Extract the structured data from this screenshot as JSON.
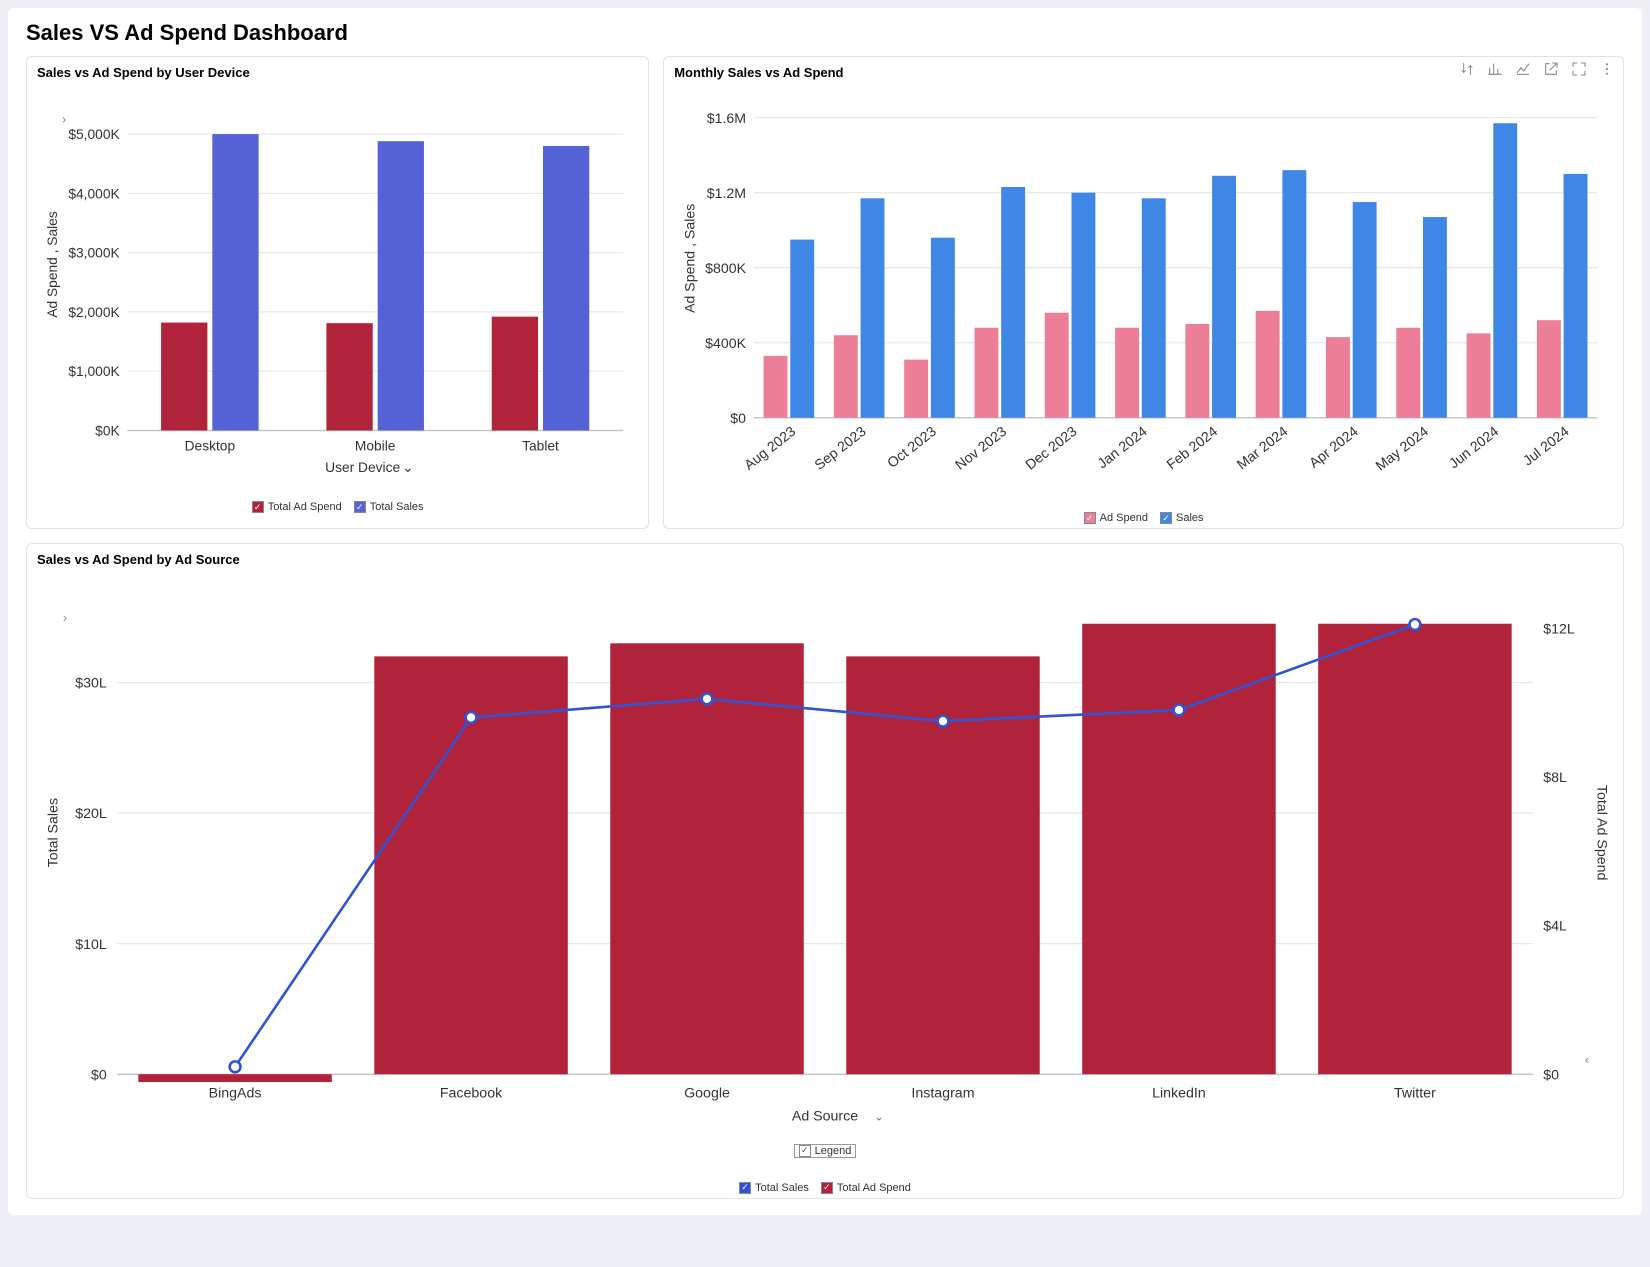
{
  "dashboard_title": "Sales VS Ad Spend Dashboard",
  "colors": {
    "panel_border": "#e0e2e8",
    "grid": "#e8e8e8",
    "axis": "#cfcfcf",
    "bg": "#ffffff"
  },
  "chart_device": {
    "title": "Sales vs Ad Spend by User Device",
    "type": "grouped-bar",
    "y_title": "Ad Spend , Sales",
    "x_title": "User Device",
    "y_ticks": [
      0,
      1000,
      2000,
      3000,
      4000,
      5000
    ],
    "y_tick_labels": [
      "$0K",
      "$1,000K",
      "$2,000K",
      "$3,000K",
      "$4,000K",
      "$5,000K"
    ],
    "y_max": 5600,
    "categories": [
      "Desktop",
      "Mobile",
      "Tablet"
    ],
    "series": [
      {
        "name": "Total Ad Spend",
        "color": "#b1233a",
        "values": [
          1820,
          1810,
          1920
        ]
      },
      {
        "name": "Total Sales",
        "color": "#5562d6",
        "values": [
          5000,
          4880,
          4800
        ]
      }
    ],
    "legend": [
      {
        "label": "Total Ad Spend",
        "color": "#b1233a"
      },
      {
        "label": "Total Sales",
        "color": "#5562d6"
      }
    ]
  },
  "chart_monthly": {
    "title": "Monthly Sales vs Ad Spend",
    "type": "grouped-bar",
    "y_title": "Ad Spend , Sales",
    "y_ticks": [
      0,
      400000,
      800000,
      1200000,
      1600000
    ],
    "y_tick_labels": [
      "$0",
      "$400K",
      "$800K",
      "$1.2M",
      "$1.6M"
    ],
    "y_max": 1700000,
    "categories": [
      "Aug 2023",
      "Sep 2023",
      "Oct 2023",
      "Nov 2023",
      "Dec 2023",
      "Jan 2024",
      "Feb 2024",
      "Mar 2024",
      "Apr 2024",
      "May 2024",
      "Jun 2024",
      "Jul 2024"
    ],
    "series": [
      {
        "name": "Ad Spend",
        "color": "#ec7e97",
        "values": [
          330000,
          440000,
          310000,
          480000,
          560000,
          480000,
          500000,
          570000,
          430000,
          480000,
          450000,
          520000
        ]
      },
      {
        "name": "Sales",
        "color": "#3f87e6",
        "values": [
          950000,
          1170000,
          960000,
          1230000,
          1200000,
          1170000,
          1290000,
          1320000,
          1150000,
          1070000,
          1570000,
          1300000
        ]
      }
    ],
    "legend": [
      {
        "label": "Ad Spend",
        "color": "#ec7e97"
      },
      {
        "label": "Sales",
        "color": "#3f87e6"
      }
    ],
    "toolbar_icons": [
      "sort-icon",
      "barchart-icon",
      "drilldown-icon",
      "popout-icon",
      "expand-icon",
      "more-icon"
    ]
  },
  "chart_source": {
    "title": "Sales vs Ad Spend by Ad Source",
    "type": "bar-line-dual-axis",
    "y_left_title": "Total Sales",
    "y_right_title": "Total Ad Spend",
    "x_title": "Ad Source",
    "y_left_ticks": [
      0,
      10,
      20,
      30
    ],
    "y_left_tick_labels": [
      "$0",
      "$10L",
      "$20L",
      "$30L"
    ],
    "y_left_max": 37,
    "y_right_ticks": [
      0,
      4,
      8,
      12
    ],
    "y_right_tick_labels": [
      "$0",
      "$4L",
      "$8L",
      "$12L"
    ],
    "y_right_max": 13,
    "categories": [
      "BingAds",
      "Facebook",
      "Google",
      "Instagram",
      "LinkedIn",
      "Twitter"
    ],
    "bars": {
      "name": "Total Ad Spend",
      "color": "#b1233a",
      "values": [
        -0.6,
        32,
        33,
        32,
        34.5,
        34.5
      ]
    },
    "line": {
      "name": "Total Sales",
      "color": "#3053d6",
      "marker_fill": "#ffffff",
      "values": [
        0.2,
        9.6,
        10.1,
        9.5,
        9.8,
        12.1
      ]
    },
    "legend_title": "Legend",
    "legend": [
      {
        "label": "Total Sales",
        "color": "#3053d6"
      },
      {
        "label": "Total Ad Spend",
        "color": "#b1233a"
      }
    ]
  }
}
